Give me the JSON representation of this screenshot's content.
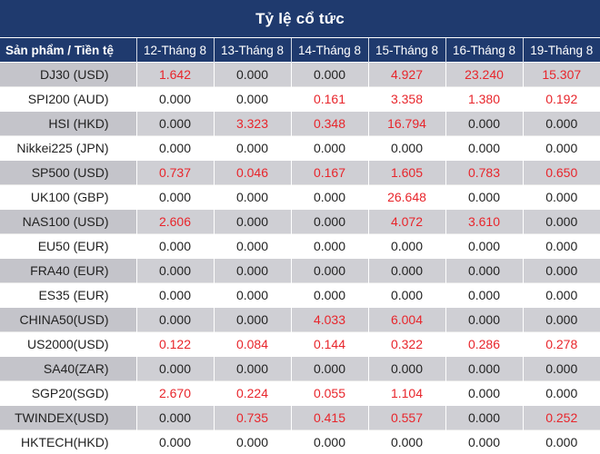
{
  "title": "Tỷ lệ cổ tức",
  "header": {
    "product_label": "Sản phẩm / Tiền tệ",
    "dates": [
      "12-Tháng 8",
      "13-Tháng 8",
      "14-Tháng 8",
      "15-Tháng 8",
      "16-Tháng 8",
      "19-Tháng 8"
    ]
  },
  "colors": {
    "header_bg": "#1f3a6e",
    "stripe": "#cfcfd4",
    "positive": "#e8252b"
  },
  "rows": [
    {
      "product": "DJ30 (USD)",
      "values": [
        "1.642",
        "0.000",
        "0.000",
        "4.927",
        "23.240",
        "15.307"
      ]
    },
    {
      "product": "SPI200 (AUD)",
      "values": [
        "0.000",
        "0.000",
        "0.161",
        "3.358",
        "1.380",
        "0.192"
      ]
    },
    {
      "product": "HSI (HKD)",
      "values": [
        "0.000",
        "3.323",
        "0.348",
        "16.794",
        "0.000",
        "0.000"
      ]
    },
    {
      "product": "Nikkei225 (JPN)",
      "values": [
        "0.000",
        "0.000",
        "0.000",
        "0.000",
        "0.000",
        "0.000"
      ]
    },
    {
      "product": "SP500 (USD)",
      "values": [
        "0.737",
        "0.046",
        "0.167",
        "1.605",
        "0.783",
        "0.650"
      ]
    },
    {
      "product": "UK100 (GBP)",
      "values": [
        "0.000",
        "0.000",
        "0.000",
        "26.648",
        "0.000",
        "0.000"
      ]
    },
    {
      "product": "NAS100 (USD)",
      "values": [
        "2.606",
        "0.000",
        "0.000",
        "4.072",
        "3.610",
        "0.000"
      ]
    },
    {
      "product": "EU50 (EUR)",
      "values": [
        "0.000",
        "0.000",
        "0.000",
        "0.000",
        "0.000",
        "0.000"
      ]
    },
    {
      "product": "FRA40 (EUR)",
      "values": [
        "0.000",
        "0.000",
        "0.000",
        "0.000",
        "0.000",
        "0.000"
      ]
    },
    {
      "product": "ES35 (EUR)",
      "values": [
        "0.000",
        "0.000",
        "0.000",
        "0.000",
        "0.000",
        "0.000"
      ]
    },
    {
      "product": "CHINA50(USD)",
      "values": [
        "0.000",
        "0.000",
        "4.033",
        "6.004",
        "0.000",
        "0.000"
      ]
    },
    {
      "product": "US2000(USD)",
      "values": [
        "0.122",
        "0.084",
        "0.144",
        "0.322",
        "0.286",
        "0.278"
      ]
    },
    {
      "product": "SA40(ZAR)",
      "values": [
        "0.000",
        "0.000",
        "0.000",
        "0.000",
        "0.000",
        "0.000"
      ]
    },
    {
      "product": "SGP20(SGD)",
      "values": [
        "2.670",
        "0.224",
        "0.055",
        "1.104",
        "0.000",
        "0.000"
      ]
    },
    {
      "product": "TWINDEX(USD)",
      "values": [
        "0.000",
        "0.735",
        "0.415",
        "0.557",
        "0.000",
        "0.252"
      ]
    },
    {
      "product": "HKTECH(HKD)",
      "values": [
        "0.000",
        "0.000",
        "0.000",
        "0.000",
        "0.000",
        "0.000"
      ]
    }
  ]
}
